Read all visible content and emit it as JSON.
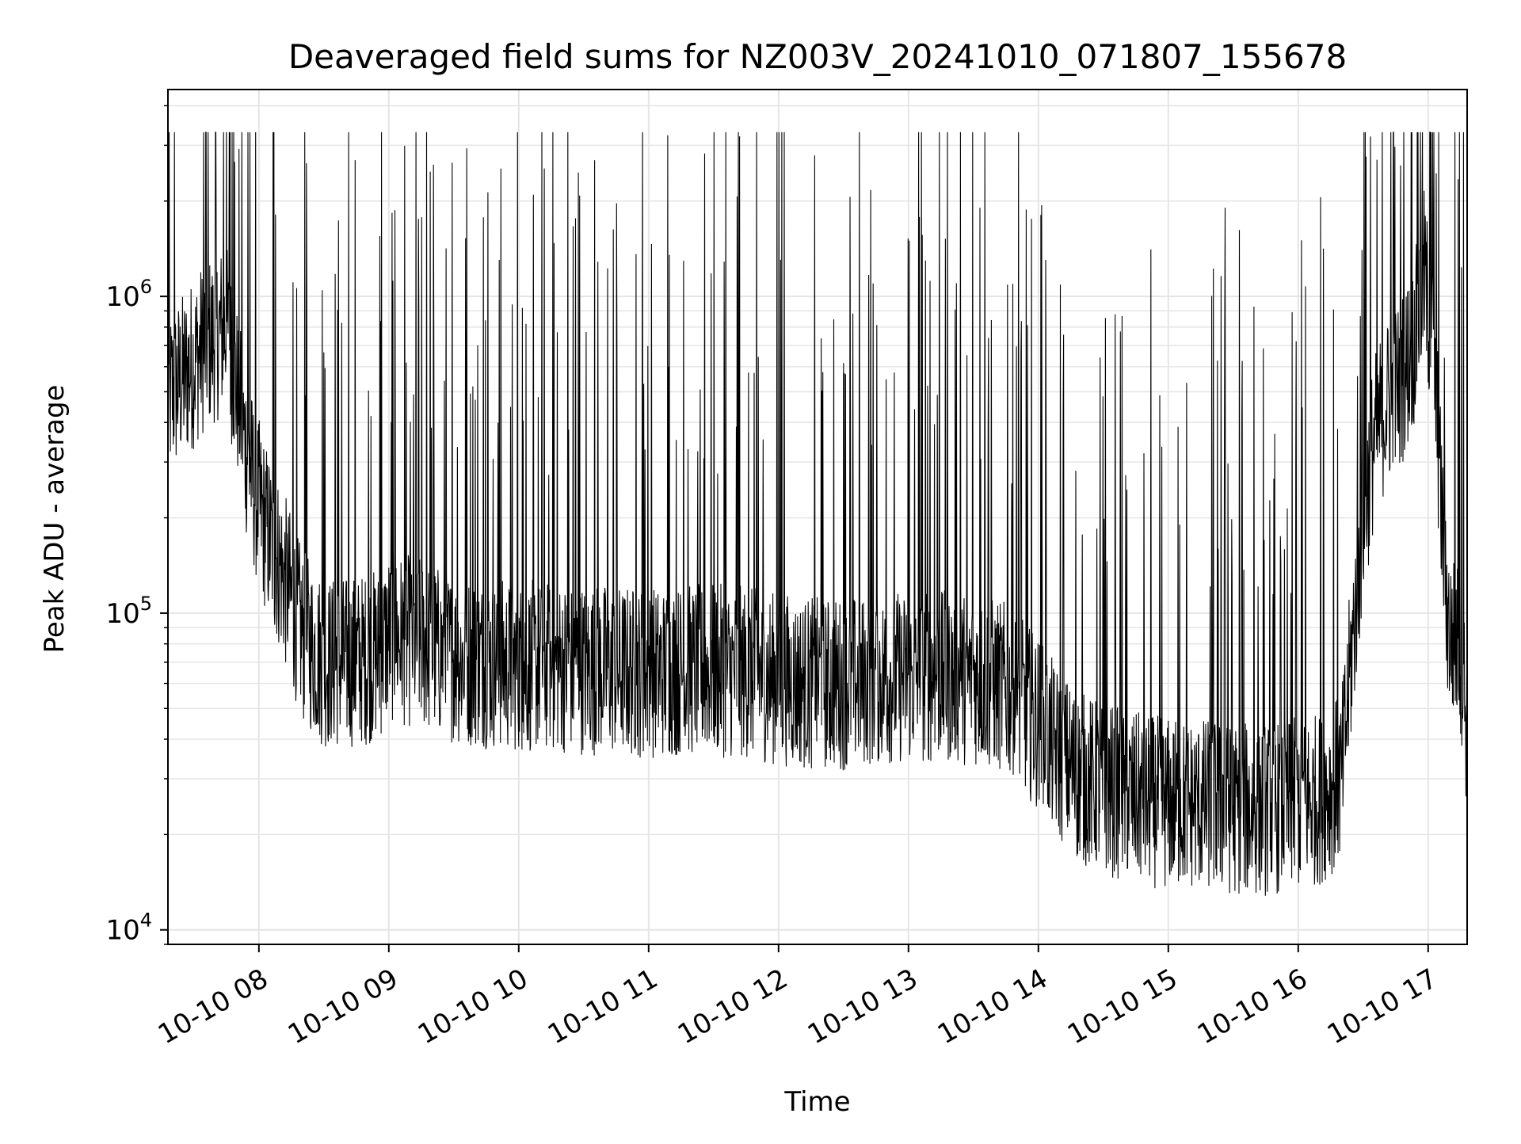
{
  "chart_data": {
    "type": "line",
    "title": "Deaveraged field sums for NZ003V_20241010_071807_155678",
    "xlabel": "Time",
    "ylabel": "Peak ADU - average",
    "yscale": "log",
    "grid": true,
    "line_color": "#000000",
    "grid_color": "#e5e5e5",
    "xlim": [
      "2024-10-10 07:18",
      "2024-10-10 17:18"
    ],
    "ylim": [
      9000,
      4500000
    ],
    "x_ticks": [
      {
        "time": "2024-10-10 08:00",
        "label": "10-10 08"
      },
      {
        "time": "2024-10-10 09:00",
        "label": "10-10 09"
      },
      {
        "time": "2024-10-10 10:00",
        "label": "10-10 10"
      },
      {
        "time": "2024-10-10 11:00",
        "label": "10-10 11"
      },
      {
        "time": "2024-10-10 12:00",
        "label": "10-10 12"
      },
      {
        "time": "2024-10-10 13:00",
        "label": "10-10 13"
      },
      {
        "time": "2024-10-10 14:00",
        "label": "10-10 14"
      },
      {
        "time": "2024-10-10 15:00",
        "label": "10-10 15"
      },
      {
        "time": "2024-10-10 16:00",
        "label": "10-10 16"
      },
      {
        "time": "2024-10-10 17:00",
        "label": "10-10 17"
      }
    ],
    "y_ticks": [
      {
        "value": 10000,
        "base": "10",
        "exp": "4"
      },
      {
        "value": 100000,
        "base": "10",
        "exp": "5"
      },
      {
        "value": 1000000,
        "base": "10",
        "exp": "6"
      }
    ],
    "series": [
      {
        "x": [
          "2024-10-10 07:18",
          "2024-10-10 07:25",
          "2024-10-10 07:30",
          "2024-10-10 07:35",
          "2024-10-10 07:40",
          "2024-10-10 07:45",
          "2024-10-10 07:50",
          "2024-10-10 07:55",
          "2024-10-10 08:00",
          "2024-10-10 08:05",
          "2024-10-10 08:10",
          "2024-10-10 08:15",
          "2024-10-10 08:20",
          "2024-10-10 08:30",
          "2024-10-10 08:40",
          "2024-10-10 08:50",
          "2024-10-10 08:56",
          "2024-10-10 09:00",
          "2024-10-10 09:15",
          "2024-10-10 09:30",
          "2024-10-10 09:45",
          "2024-10-10 10:00",
          "2024-10-10 10:15",
          "2024-10-10 10:30",
          "2024-10-10 10:45",
          "2024-10-10 11:00",
          "2024-10-10 11:15",
          "2024-10-10 11:30",
          "2024-10-10 11:45",
          "2024-10-10 12:00",
          "2024-10-10 12:15",
          "2024-10-10 12:30",
          "2024-10-10 12:45",
          "2024-10-10 13:00",
          "2024-10-10 13:15",
          "2024-10-10 13:30",
          "2024-10-10 13:45",
          "2024-10-10 14:00",
          "2024-10-10 14:10",
          "2024-10-10 14:20",
          "2024-10-10 14:30",
          "2024-10-10 14:45",
          "2024-10-10 15:00",
          "2024-10-10 15:15",
          "2024-10-10 15:30",
          "2024-10-10 15:45",
          "2024-10-10 16:00",
          "2024-10-10 16:10",
          "2024-10-10 16:20",
          "2024-10-10 16:25",
          "2024-10-10 16:30",
          "2024-10-10 16:35",
          "2024-10-10 16:40",
          "2024-10-10 16:45",
          "2024-10-10 16:50",
          "2024-10-10 16:55",
          "2024-10-10 16:58",
          "2024-10-10 17:00",
          "2024-10-10 17:03",
          "2024-10-10 17:05",
          "2024-10-10 17:08",
          "2024-10-10 17:10",
          "2024-10-10 17:13",
          "2024-10-10 17:16",
          "2024-10-10 17:18"
        ],
        "y": [
          480000,
          550000,
          620000,
          700000,
          750000,
          800000,
          500000,
          300000,
          220000,
          170000,
          140000,
          110000,
          85000,
          70000,
          70000,
          72000,
          75000,
          85000,
          80000,
          72000,
          70000,
          68000,
          68000,
          67000,
          66000,
          65000,
          66000,
          66000,
          65000,
          62000,
          60000,
          60000,
          62000,
          63000,
          63000,
          62000,
          58000,
          45000,
          35000,
          30000,
          28000,
          26000,
          25000,
          25000,
          24000,
          24000,
          25000,
          26000,
          30000,
          80000,
          200000,
          350000,
          450000,
          500000,
          600000,
          800000,
          1200000,
          900000,
          600000,
          300000,
          120000,
          85000,
          80000,
          70000,
          40000
        ],
        "spike_count": 320,
        "spike_max": 3300000
      }
    ]
  }
}
